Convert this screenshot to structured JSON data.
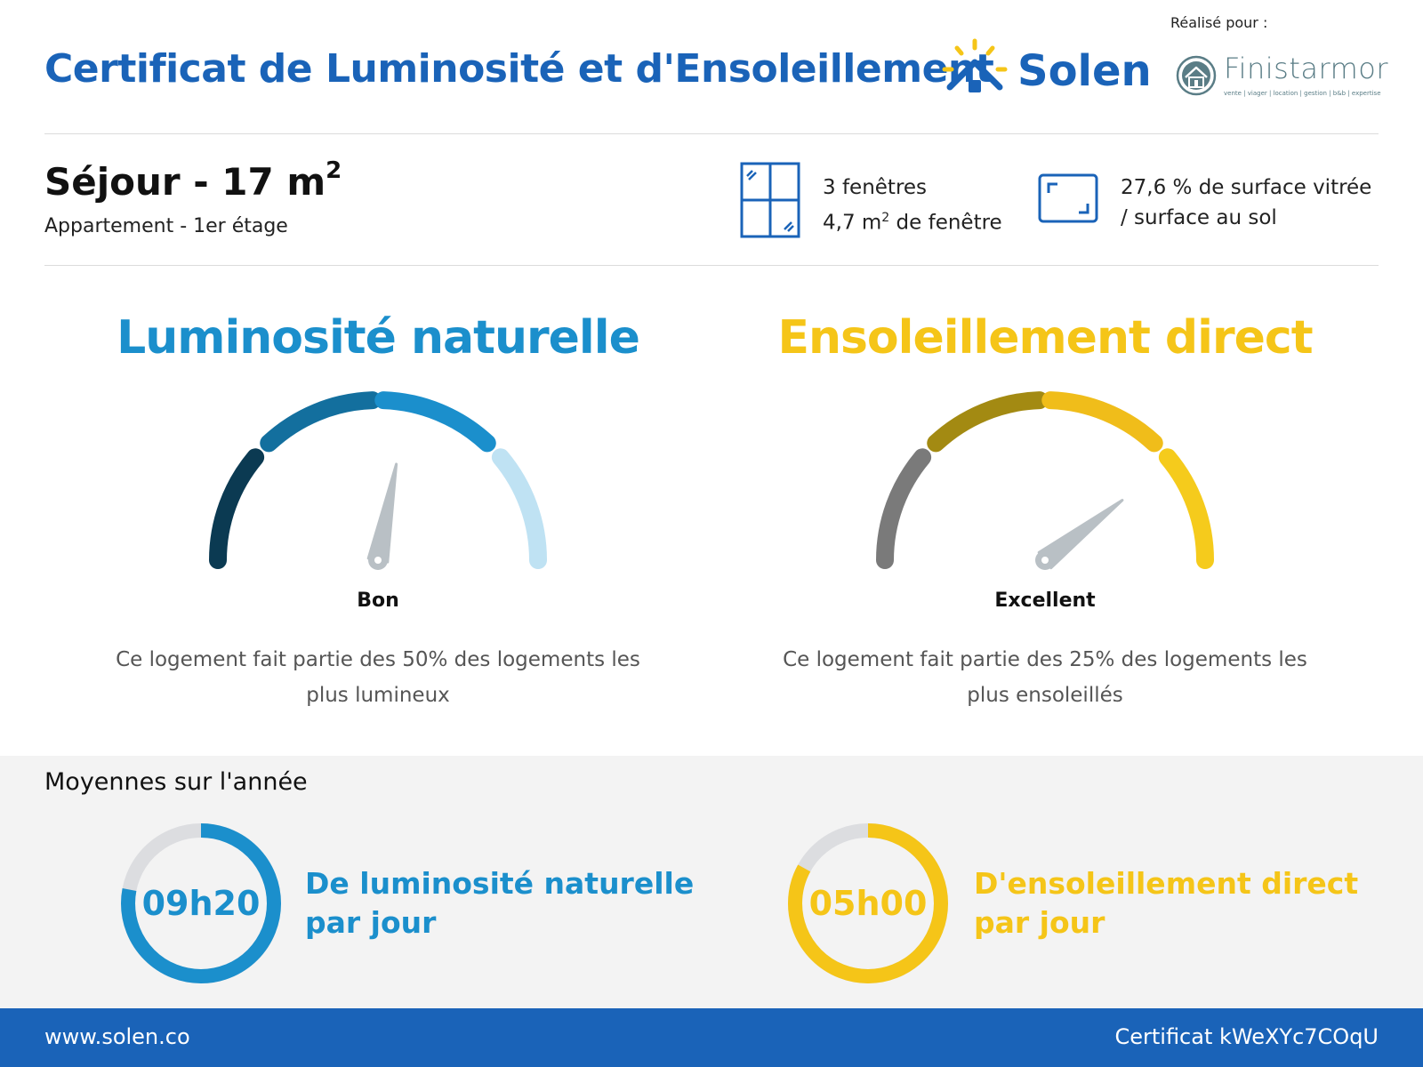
{
  "header": {
    "title": "Certificat de Luminosité et d'Ensoleillement",
    "brand": "Solen",
    "made_for": "Réalisé pour :",
    "partner_name": "Finistarmor",
    "partner_tagline": "vente | viager | location | gestion | b&b | expertise"
  },
  "room": {
    "name": "Séjour - 17 m",
    "area_exponent": "2",
    "subtitle": "Appartement - 1er étage",
    "windows_count": "3 fenêtres",
    "window_area_value": "4,7 m",
    "window_area_exponent": "2",
    "window_area_suffix": " de fenêtre",
    "glazing_ratio_line1": "27,6 % de surface vitrée",
    "glazing_ratio_line2": "/ surface au sol"
  },
  "luminosity": {
    "title": "Luminosité naturelle",
    "rating": "Bon",
    "description": "Ce logement fait partie des 50% des logements les plus lumineux",
    "gauge_level": 0.56,
    "segment_colors": [
      "#0b3a52",
      "#136f9e",
      "#1b8fcc",
      "#bfe2f3"
    ]
  },
  "sunlight": {
    "title": "Ensoleillement direct",
    "rating": "Excellent",
    "description": "Ce logement fait partie des 25% des logements les plus ensoleillés",
    "gauge_level": 0.79,
    "segment_colors": [
      "#7a7a7a",
      "#a38a12",
      "#f0bd1a",
      "#f5cb1c"
    ]
  },
  "averages": {
    "title": "Moyennes sur l'année",
    "luminosity_value": "09h20",
    "luminosity_label_line1": "De luminosité naturelle",
    "luminosity_label_line2": "par jour",
    "luminosity_fraction": 0.78,
    "sunlight_value": "05h00",
    "sunlight_label_line1": "D'ensoleillement direct",
    "sunlight_label_line2": "par jour",
    "sunlight_fraction": 0.83
  },
  "footer": {
    "url": "www.solen.co",
    "certificate": "Certificat kWeXYc7COqU"
  },
  "colors": {
    "brand_blue": "#1a63b8",
    "luminosity_blue": "#1b8fcc",
    "sunlight_yellow": "#f5c518",
    "needle_grey": "#b9c0c5",
    "ring_track": "#dcdde0"
  }
}
